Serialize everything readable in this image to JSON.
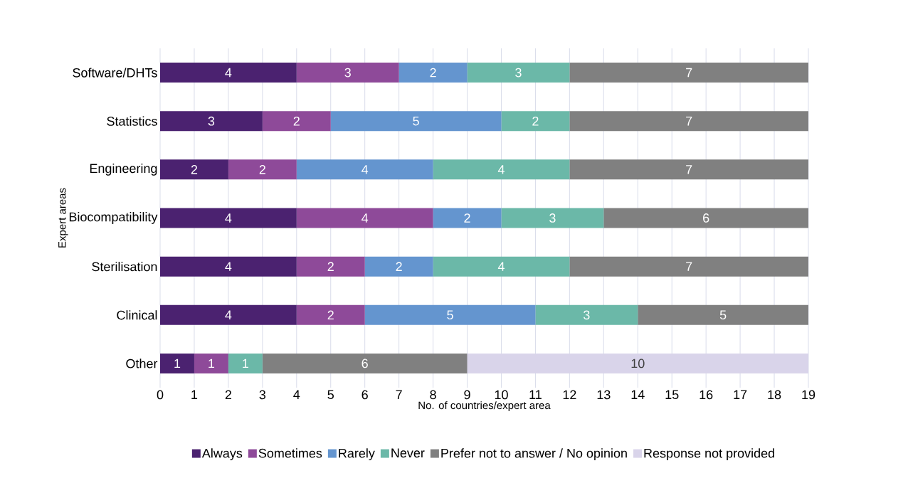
{
  "chart_data": {
    "type": "bar",
    "orientation": "horizontal",
    "stacked": true,
    "categories": [
      "Software/DHTs",
      "Statistics",
      "Engineering",
      "Biocompatibility",
      "Sterilisation",
      "Clinical",
      "Other"
    ],
    "series": [
      {
        "name": "Always",
        "color": "#4b2270",
        "values": [
          4,
          3,
          2,
          4,
          4,
          4,
          1
        ]
      },
      {
        "name": "Sometimes",
        "color": "#8e4a99",
        "values": [
          3,
          2,
          2,
          4,
          2,
          2,
          1
        ]
      },
      {
        "name": "Rarely",
        "color": "#6495cf",
        "values": [
          2,
          5,
          4,
          2,
          2,
          5,
          null
        ]
      },
      {
        "name": "Never",
        "color": "#6bb8a8",
        "values": [
          3,
          2,
          4,
          3,
          4,
          3,
          1
        ]
      },
      {
        "name": "Prefer not to answer / No opinion",
        "color": "#808080",
        "values": [
          7,
          7,
          7,
          6,
          7,
          5,
          6
        ]
      },
      {
        "name": "Response not provided",
        "color": "#d9d4ea",
        "values": [
          null,
          null,
          null,
          null,
          null,
          null,
          10
        ]
      }
    ],
    "xlim": [
      0,
      19
    ],
    "xticks": [
      0,
      1,
      2,
      3,
      4,
      5,
      6,
      7,
      8,
      9,
      10,
      11,
      12,
      13,
      14,
      15,
      16,
      17,
      18,
      19
    ],
    "xlabel": "No. of countries/expert area",
    "ylabel": "Expert areas",
    "grid": "x",
    "legend": "bottom",
    "data_labels": true
  }
}
